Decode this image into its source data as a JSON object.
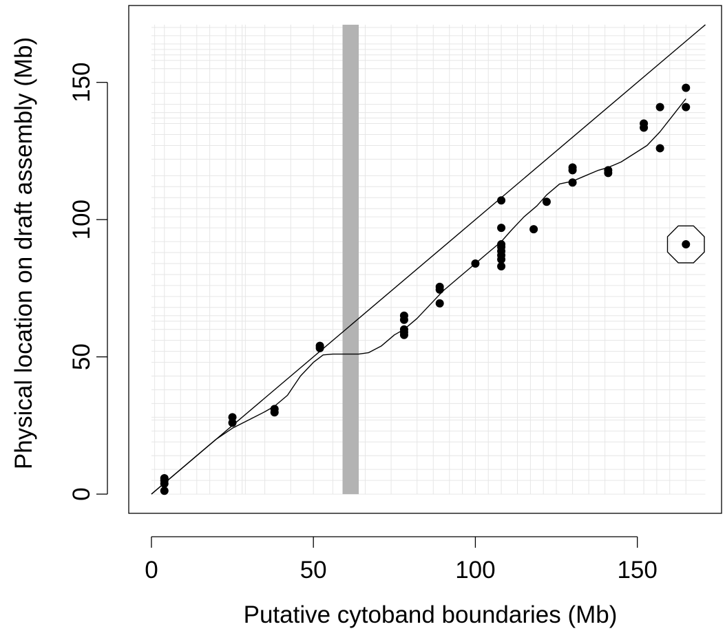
{
  "chart_data": {
    "type": "scatter",
    "xlabel": "Putative cytoband boundaries (Mb)",
    "ylabel": "Physical location on draft assembly (Mb)",
    "xlim": [
      -7,
      176
    ],
    "ylim": [
      -7,
      178
    ],
    "xticks": [
      0,
      50,
      100,
      150
    ],
    "yticks": [
      0,
      50,
      100,
      150
    ],
    "grid": true,
    "grid_x": [
      1,
      4,
      9,
      14,
      18,
      23,
      26,
      28,
      29,
      35,
      43,
      50,
      56,
      60,
      63,
      66,
      74,
      82,
      87,
      92,
      96,
      100,
      104,
      108,
      113,
      117,
      121,
      125,
      130,
      135,
      140,
      146,
      152,
      156,
      160,
      165
    ],
    "grid_y": [
      0,
      5,
      9,
      14,
      19,
      23,
      27,
      28,
      33,
      38,
      43,
      48,
      52,
      56,
      60,
      63,
      65,
      68,
      72,
      76,
      80,
      84,
      88,
      92,
      97,
      101,
      104,
      108,
      112,
      116,
      122,
      127,
      131,
      135,
      137,
      139,
      142,
      146,
      150,
      155,
      158,
      160,
      162,
      164,
      167,
      170
    ],
    "highlight_band": {
      "x": [
        59,
        64
      ],
      "color": "#b3b3b3"
    },
    "reference_line": {
      "x": [
        0,
        171
      ],
      "y": [
        0,
        171
      ]
    },
    "smooth_line": {
      "x": [
        0,
        4,
        8,
        12,
        16,
        20,
        25,
        30,
        35,
        38,
        42,
        46,
        50,
        53,
        56,
        60,
        62,
        64,
        67,
        71,
        75,
        78,
        82,
        86,
        90,
        95,
        100,
        104,
        108,
        111,
        115,
        119,
        122,
        126,
        130,
        134,
        138,
        141,
        145,
        149,
        153,
        157,
        161,
        165
      ],
      "y": [
        0,
        4,
        8,
        12,
        16,
        20,
        24,
        27,
        30,
        32,
        36,
        43,
        48,
        50.7,
        51,
        51,
        51,
        51,
        51.5,
        54,
        58,
        60,
        64,
        69,
        74,
        79,
        84,
        88,
        92,
        96,
        101,
        105,
        109,
        113,
        114,
        116,
        118,
        119,
        121,
        124,
        127,
        132,
        138,
        144
      ]
    },
    "points": [
      [
        4,
        5.8
      ],
      [
        4,
        5.0
      ],
      [
        4,
        3.8
      ],
      [
        4,
        1.2
      ],
      [
        25,
        28.0
      ],
      [
        25,
        26.0
      ],
      [
        38,
        31.0
      ],
      [
        38,
        29.8
      ],
      [
        52,
        54.0
      ],
      [
        52,
        53.2
      ],
      [
        78,
        65.0
      ],
      [
        78,
        63.5
      ],
      [
        78,
        60.0
      ],
      [
        78,
        59.0
      ],
      [
        78,
        58.0
      ],
      [
        89,
        75.5
      ],
      [
        89,
        74.5
      ],
      [
        89,
        69.5
      ],
      [
        100,
        84.0
      ],
      [
        108,
        107.0
      ],
      [
        108,
        97.0
      ],
      [
        108,
        91.0
      ],
      [
        108,
        90.0
      ],
      [
        108,
        88.5
      ],
      [
        108,
        87.0
      ],
      [
        108,
        85.5
      ],
      [
        108,
        83.0
      ],
      [
        118,
        96.5
      ],
      [
        122,
        106.5
      ],
      [
        130,
        119.0
      ],
      [
        130,
        118.0
      ],
      [
        130,
        113.5
      ],
      [
        141,
        118.0
      ],
      [
        141,
        117.0
      ],
      [
        152,
        135.0
      ],
      [
        152,
        133.5
      ],
      [
        157,
        141.0
      ],
      [
        157,
        126.0
      ],
      [
        165,
        148.0
      ],
      [
        165,
        141.0
      ],
      [
        165,
        91.0
      ]
    ],
    "highlighted_point": [
      165,
      91.0
    ]
  }
}
